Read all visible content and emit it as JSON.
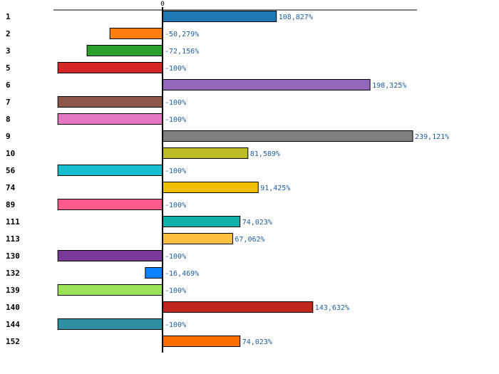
{
  "chart_data": {
    "type": "bar",
    "orientation": "horizontal",
    "title": "",
    "xlabel": "",
    "ylabel": "",
    "zero_tick_label": "0",
    "categories": [
      "1",
      "2",
      "3",
      "5",
      "6",
      "7",
      "8",
      "9",
      "10",
      "56",
      "74",
      "89",
      "111",
      "113",
      "130",
      "132",
      "139",
      "140",
      "144",
      "152"
    ],
    "values": [
      108.827,
      -50.279,
      -72.156,
      -100,
      198.325,
      -100,
      -100,
      239.121,
      81.589,
      -100,
      91.425,
      -100,
      74.023,
      67.062,
      -100,
      -16.469,
      -100,
      143.632,
      -100,
      74.023
    ],
    "value_labels": [
      "108,827%",
      "-50,279%",
      "-72,156%",
      "-100%",
      "198,325%",
      "-100%",
      "-100%",
      "239,121%",
      "81,589%",
      "-100%",
      "91,425%",
      "-100%",
      "74,023%",
      "67,062%",
      "-100%",
      "-16,469%",
      "-100%",
      "143,632%",
      "-100%",
      "74,023%"
    ],
    "colors": [
      "#1f77b4",
      "#ff7f0e",
      "#2ca02c",
      "#d62728",
      "#9467bd",
      "#8c564b",
      "#e377c2",
      "#7f7f7f",
      "#bcbd22",
      "#17becf",
      "#f0c000",
      "#ff5a8c",
      "#10b0a8",
      "#ffbf40",
      "#7a3a9a",
      "#0a84ff",
      "#9be45a",
      "#c0281c",
      "#2e8fa0",
      "#ff6f00"
    ],
    "xlim": [
      -100,
      239.121
    ],
    "grid": false
  }
}
